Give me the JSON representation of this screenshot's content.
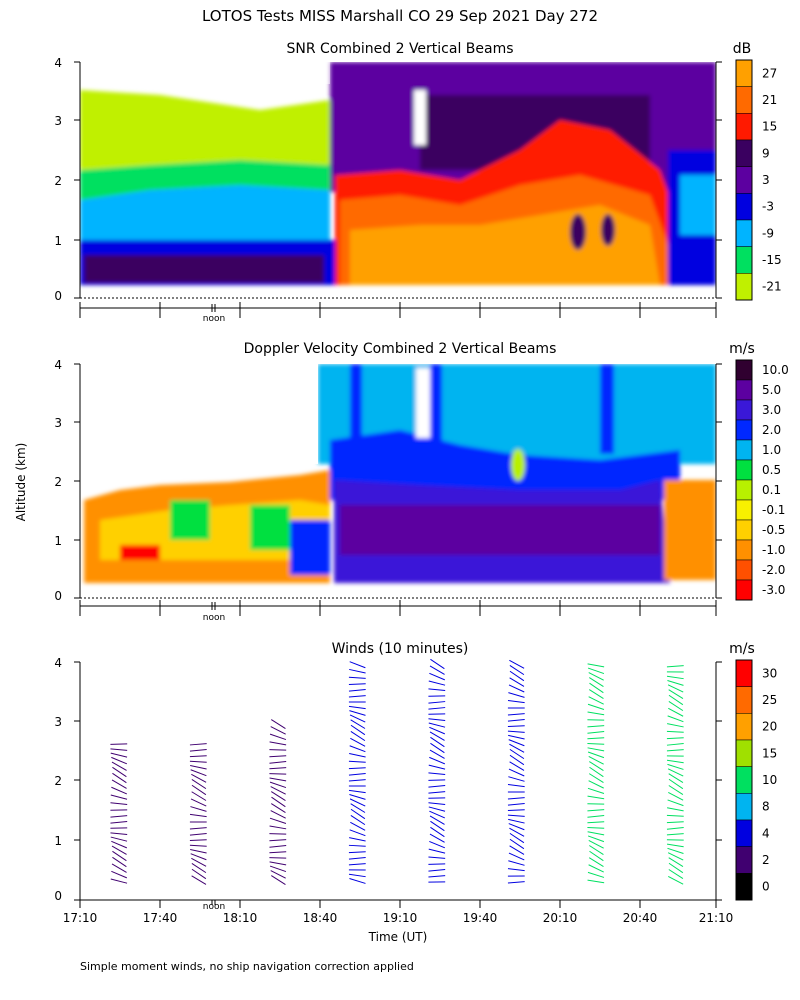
{
  "figure": {
    "title": "LOTOS Tests MISS Marshall CO  29 Sep 2021 Day 272",
    "ylabel": "Altitude (km)",
    "xlabel": "Time (UT)",
    "footnote": "Simple moment winds, no ship navigation correction applied",
    "noon_label": "noon"
  },
  "chart_data": [
    {
      "type": "heatmap",
      "title": "SNR Combined 2 Vertical Beams",
      "colorbar_unit": "dB",
      "colorbar_ticks": [
        "27",
        "21",
        "15",
        "9",
        "3",
        "-3",
        "-9",
        "-15",
        "-21"
      ],
      "colors": [
        "#ffa000",
        "#ff6a00",
        "#ff1a00",
        "#3a0060",
        "#5c00a0",
        "#0000e0",
        "#00b4ff",
        "#00e060",
        "#c0f000"
      ],
      "yticks": [
        "0",
        "1",
        "2",
        "3",
        "4"
      ],
      "ylim": [
        0,
        4
      ],
      "xlim": [
        "17:10",
        "21:10"
      ],
      "description_regions": [
        {
          "time": [
            "17:10",
            "18:50"
          ],
          "alt_km": [
            0.2,
            2.2
          ],
          "range_db": [
            -21,
            3
          ]
        },
        {
          "time": [
            "18:50",
            "20:50"
          ],
          "alt_km": [
            0.2,
            2.2
          ],
          "range_db": [
            15,
            27
          ]
        },
        {
          "time": [
            "18:50",
            "21:10"
          ],
          "alt_km": [
            2.2,
            4.0
          ],
          "range_db": [
            3,
            15
          ]
        }
      ]
    },
    {
      "type": "heatmap",
      "title": "Doppler Velocity Combined 2 Vertical Beams",
      "colorbar_unit": "m/s",
      "colorbar_ticks": [
        "10.0",
        "5.0",
        "3.0",
        "2.0",
        "1.0",
        "0.5",
        "0.1",
        "-0.1",
        "-0.5",
        "-1.0",
        "-2.0",
        "-3.0"
      ],
      "colors": [
        "#300030",
        "#5c00a0",
        "#3a18d8",
        "#0028ff",
        "#00b4f0",
        "#00e040",
        "#b8f000",
        "#f8f000",
        "#ffd000",
        "#ff9000",
        "#ff5000",
        "#ff0000"
      ],
      "yticks": [
        "0",
        "1",
        "2",
        "3",
        "4"
      ],
      "ylim": [
        0,
        4
      ],
      "xlim": [
        "17:10",
        "21:10"
      ],
      "description_regions": [
        {
          "time": [
            "17:10",
            "18:50"
          ],
          "alt_km": [
            0.2,
            2.0
          ],
          "range_ms": [
            -3.0,
            1.0
          ]
        },
        {
          "time": [
            "18:50",
            "20:50"
          ],
          "alt_km": [
            0.2,
            4.0
          ],
          "range_ms": [
            1.0,
            10.0
          ]
        }
      ]
    },
    {
      "type": "scatter",
      "title": "Winds (10 minutes)",
      "colorbar_unit": "m/s",
      "colorbar_ticks": [
        "30",
        "25",
        "20",
        "15",
        "10",
        "8",
        "4",
        "2",
        "0"
      ],
      "colors": [
        "#ff0000",
        "#ff6a00",
        "#ffa000",
        "#a0e000",
        "#00e060",
        "#00b4f0",
        "#0000e0",
        "#400070",
        "#000000"
      ],
      "yticks": [
        "0",
        "1",
        "2",
        "3",
        "4"
      ],
      "xticks": [
        "17:10",
        "17:40",
        "18:10",
        "18:40",
        "19:10",
        "19:40",
        "20:10",
        "20:40",
        "21:10"
      ],
      "ylim": [
        0,
        4
      ],
      "profiles": [
        {
          "time": "17:26",
          "top_km": 2.7,
          "speed_ms": 3
        },
        {
          "time": "17:56",
          "top_km": 2.7,
          "speed_ms": 3
        },
        {
          "time": "18:26",
          "top_km": 3.0,
          "speed_ms": 3
        },
        {
          "time": "18:56",
          "top_km": 4.0,
          "speed_ms": 4
        },
        {
          "time": "19:26",
          "top_km": 4.0,
          "speed_ms": 4
        },
        {
          "time": "19:56",
          "top_km": 4.0,
          "speed_ms": 5
        },
        {
          "time": "20:26",
          "top_km": 4.0,
          "speed_ms": 12
        },
        {
          "time": "20:56",
          "top_km": 4.0,
          "speed_ms": 14
        }
      ]
    }
  ]
}
